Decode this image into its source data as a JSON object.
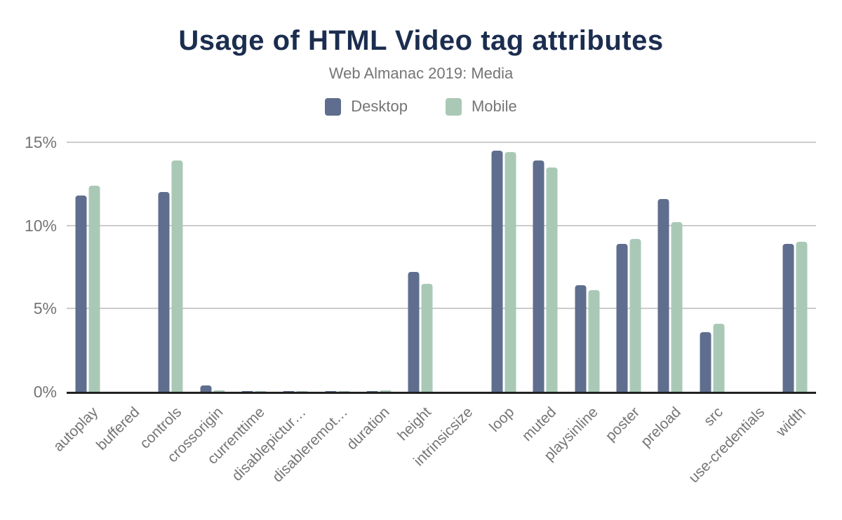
{
  "chart_data": {
    "type": "bar",
    "title": "Usage of HTML Video tag attributes",
    "subtitle": "Web Almanac 2019: Media",
    "categories": [
      "autoplay",
      "buffered",
      "controls",
      "crossorigin",
      "currenttime",
      "disablepictur…",
      "disableremot…",
      "duration",
      "height",
      "intrinsicsize",
      "loop",
      "muted",
      "playsinline",
      "poster",
      "preload",
      "src",
      "use-credentials",
      "width"
    ],
    "series": [
      {
        "name": "Desktop",
        "color": "#5f6e8e",
        "values": [
          11.8,
          0,
          12.0,
          0.4,
          0.05,
          0.04,
          0.04,
          0.05,
          7.2,
          0,
          14.5,
          13.9,
          6.4,
          8.9,
          11.6,
          3.6,
          0,
          8.9
        ]
      },
      {
        "name": "Mobile",
        "color": "#a9c9b6",
        "values": [
          12.4,
          0,
          13.9,
          0.1,
          0.03,
          0.03,
          0.03,
          0.1,
          6.5,
          0,
          14.4,
          13.5,
          6.1,
          9.2,
          10.2,
          4.1,
          0,
          9.0
        ]
      }
    ],
    "xlabel": "",
    "ylabel": "",
    "ylim": [
      0,
      15
    ],
    "yticks": [
      0,
      5,
      10,
      15
    ],
    "ytick_labels": [
      "0%",
      "5%",
      "10%",
      "15%"
    ],
    "grid": true,
    "legend_position": "top"
  },
  "colors": {
    "title": "#1b2d4f",
    "muted_text": "#757575",
    "gridline": "#cccccc",
    "axis_line": "#212121",
    "background": "#ffffff",
    "desktop": "#5f6e8e",
    "mobile": "#a9c9b6"
  }
}
